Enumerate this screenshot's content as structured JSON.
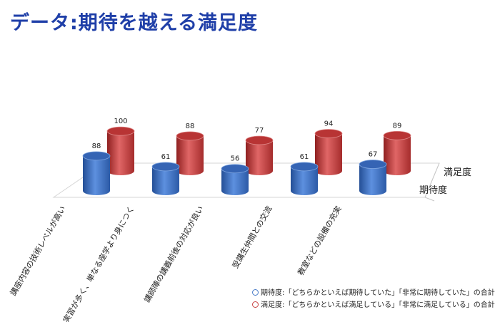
{
  "title": "データ:期待を越える満足度",
  "chart_data": {
    "type": "bar",
    "categories": [
      "講座内容の技術レベルが高い",
      "実習が多く、単なる座学より身につく",
      "講師陣の講義前後の対応が良い",
      "受講生仲間との交流",
      "教室などの設備の充実"
    ],
    "series": [
      {
        "name": "期待度",
        "values": [
          88,
          61,
          56,
          61,
          67
        ],
        "color": "#3f72c6"
      },
      {
        "name": "満足度",
        "values": [
          100,
          88,
          77,
          94,
          89
        ],
        "color": "#c94444"
      }
    ],
    "ylim": [
      0,
      100
    ],
    "grid": false
  },
  "legend": [
    {
      "text": "期待度:「どちらかといえば期待していた」「非常に期待していた」の合計",
      "color": "#4a7cc8"
    },
    {
      "text": "満足度:「どちらかといえば満足している」「非常に満足している」の合計",
      "color": "#c94444"
    }
  ]
}
